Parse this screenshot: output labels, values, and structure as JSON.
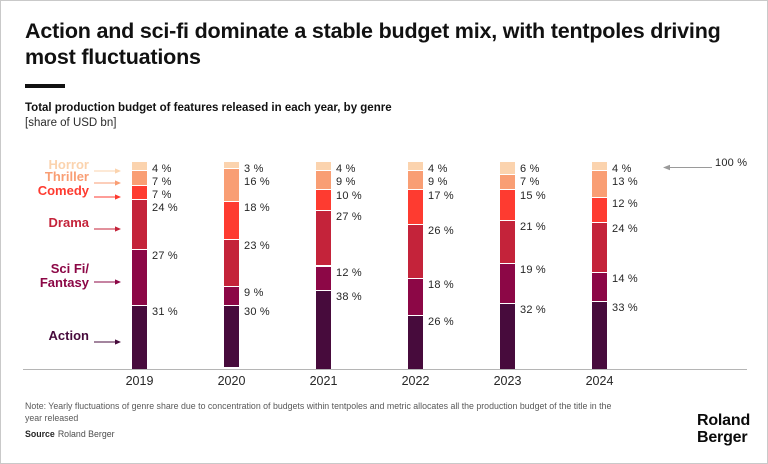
{
  "header": {
    "title": "Action and sci-fi dominate a stable budget mix, with tentpoles driving most fluctuations",
    "subtitle": "Total production budget of features released in each year, by genre",
    "unit_note": "[share of USD bn]"
  },
  "chart_data": {
    "type": "bar",
    "variant": "stacked-percent-column",
    "stack_order": "top-to-bottom",
    "title": "Total production budget of features released in each year, by genre",
    "ylabel": "share of USD bn",
    "ylim": [
      0,
      100
    ],
    "grid": false,
    "legend_position": "left-labels-with-arrows",
    "categories": [
      "2019",
      "2020",
      "2021",
      "2022",
      "2023",
      "2024"
    ],
    "series": [
      {
        "name": "Horror",
        "color": "#FBD3AE",
        "values": [
          4,
          3,
          4,
          4,
          6,
          4
        ]
      },
      {
        "name": "Thriller",
        "color": "#F99E74",
        "values": [
          7,
          16,
          9,
          9,
          7,
          13
        ]
      },
      {
        "name": "Comedy",
        "color": "#FE3B30",
        "values": [
          7,
          18,
          10,
          17,
          15,
          12
        ]
      },
      {
        "name": "Drama",
        "color": "#C4233A",
        "values": [
          24,
          23,
          27,
          26,
          21,
          24
        ]
      },
      {
        "name": "Sci Fi/Fantasy",
        "color": "#8C0746",
        "values": [
          27,
          9,
          12,
          18,
          19,
          14
        ],
        "label_lines": [
          "Sci Fi/",
          "Fantasy"
        ]
      },
      {
        "name": "Action",
        "color": "#470B3C",
        "values": [
          31,
          30,
          38,
          26,
          32,
          33
        ]
      }
    ],
    "value_suffix": " %",
    "total_annotation": "100 %"
  },
  "footer": {
    "note": "Note: Yearly fluctuations of genre share due to concentration of budgets within tentpoles and metric allocates all the production budget of the title in the year released",
    "source_label": "Source",
    "source_text": "Roland Berger"
  },
  "branding": {
    "logo_line1": "Roland",
    "logo_line2": "Berger"
  }
}
